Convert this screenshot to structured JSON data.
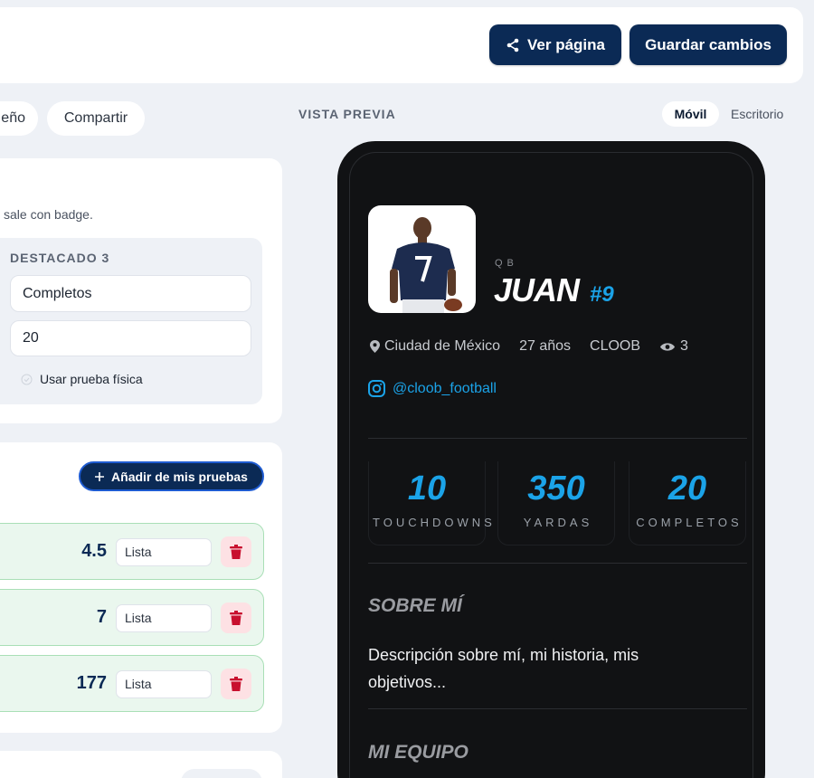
{
  "header": {
    "buttons": [
      "Ver página",
      "Guardar cambios"
    ]
  },
  "tabs": [
    "eño",
    "Compartir"
  ],
  "highlights_card": {
    "hint": "sale con badge.",
    "box": {
      "title": "DESTACADO 3",
      "fields": [
        "Completos",
        "20"
      ],
      "toggle": "Usar prueba física"
    }
  },
  "tests_card": {
    "add_button": "Añadir de mis pruebas",
    "rows": [
      {
        "value": 4.5,
        "status": "Lista"
      },
      {
        "value": 7,
        "status": "Lista"
      },
      {
        "value": 177,
        "status": "Lista"
      }
    ]
  },
  "preview": {
    "label": "VISTA PREVIA",
    "modes": [
      "Móvil",
      "Escritorio"
    ],
    "profile": {
      "position": "QB",
      "name": "JUAN",
      "number": "#9",
      "location": "Ciudad de México",
      "age": "27 años",
      "team": "CLOOB",
      "views": 3,
      "instagram": "@cloob_football",
      "stats": [
        {
          "value": 10,
          "label": "TOUCHDOWNS"
        },
        {
          "value": 350,
          "label": "YARDAS"
        },
        {
          "value": 20,
          "label": "COMPLETOS"
        }
      ],
      "about_title": "SOBRE MÍ",
      "about_text": "Descripción sobre mí, mi historia, mis objetivos...",
      "team_title": "MI EQUIPO"
    }
  }
}
